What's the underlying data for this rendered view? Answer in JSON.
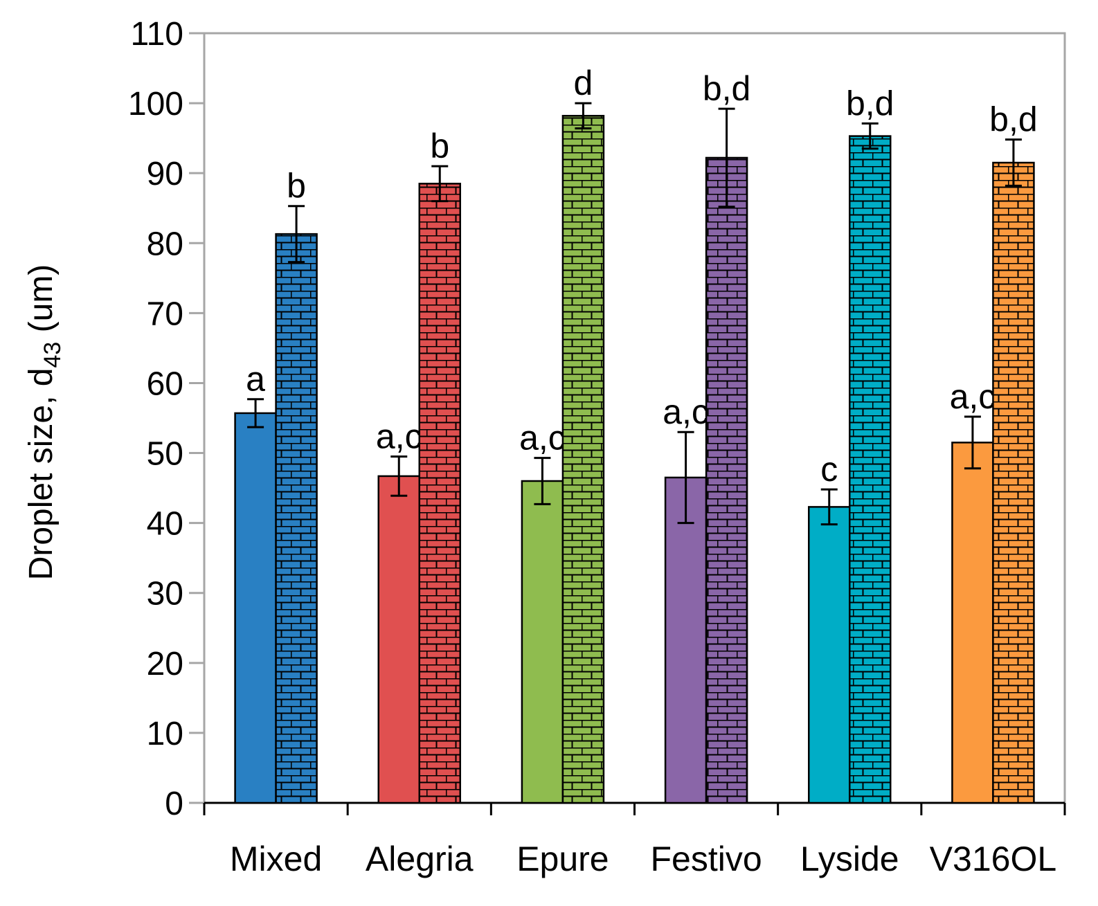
{
  "chart_data": {
    "type": "bar",
    "title": "",
    "xlabel": "",
    "ylabel": "Droplet size, d",
    "ylabel_subscript": "43",
    "ylabel_suffix": " (um)",
    "ylim": [
      0,
      110
    ],
    "yticks": [
      0,
      10,
      20,
      30,
      40,
      50,
      60,
      70,
      80,
      90,
      100,
      110
    ],
    "categories": [
      "Mixed",
      "Alegria",
      "Epure",
      "Festivo",
      "Lyside",
      "V316OL"
    ],
    "colors": [
      "#2980c3",
      "#e05050",
      "#8fbc4f",
      "#8a66a8",
      "#00adc6",
      "#fb9a3f"
    ],
    "series": [
      {
        "name": "solid",
        "pattern": "solid",
        "values": [
          55.7,
          46.7,
          46.0,
          46.5,
          42.3,
          51.5
        ],
        "errors": [
          2.0,
          2.8,
          3.3,
          6.5,
          2.5,
          3.7
        ],
        "labels": [
          "a",
          "a,c",
          "a,c",
          "a,c",
          "c",
          "a,c"
        ]
      },
      {
        "name": "brick",
        "pattern": "brick",
        "values": [
          81.3,
          88.5,
          98.2,
          92.2,
          95.3,
          91.5
        ],
        "errors": [
          4.0,
          2.5,
          1.8,
          7.0,
          1.8,
          3.3
        ],
        "labels": [
          "b",
          "b",
          "d",
          "b,d",
          "b,d",
          "b,d"
        ]
      }
    ]
  }
}
